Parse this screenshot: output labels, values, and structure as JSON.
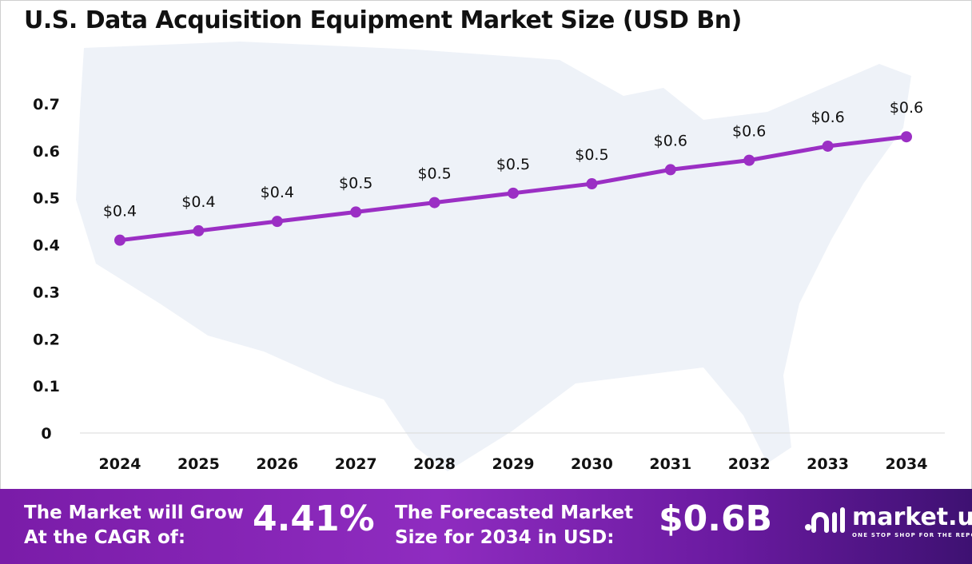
{
  "chart_data": {
    "type": "line",
    "title": "U.S. Data Acquisition Equipment Market Size (USD Bn)",
    "categories": [
      "2024",
      "2025",
      "2026",
      "2027",
      "2028",
      "2029",
      "2030",
      "2031",
      "2032",
      "2033",
      "2034"
    ],
    "values": [
      0.41,
      0.43,
      0.45,
      0.47,
      0.49,
      0.51,
      0.53,
      0.56,
      0.58,
      0.61,
      0.63
    ],
    "data_labels": [
      "$0.4",
      "$0.4",
      "$0.4",
      "$0.5",
      "$0.5",
      "$0.5",
      "$0.5",
      "$0.6",
      "$0.6",
      "$0.6",
      "$0.6"
    ],
    "yticks": [
      "0",
      "0.1",
      "0.2",
      "0.3",
      "0.4",
      "0.5",
      "0.6",
      "0.7"
    ],
    "ylim": [
      0,
      0.7
    ],
    "grid": false,
    "line_color": "#9b2fc4"
  },
  "footer": {
    "cagr_label_1": "The Market will Grow",
    "cagr_label_2": "At the CAGR of:",
    "cagr_value": "4.41%",
    "forecast_label_1": "The Forecasted Market",
    "forecast_label_2": "Size for 2034 in USD:",
    "forecast_value": "$0.6B",
    "logo_name": "market.us",
    "logo_tagline": "ONE STOP SHOP FOR THE REPORTS"
  }
}
